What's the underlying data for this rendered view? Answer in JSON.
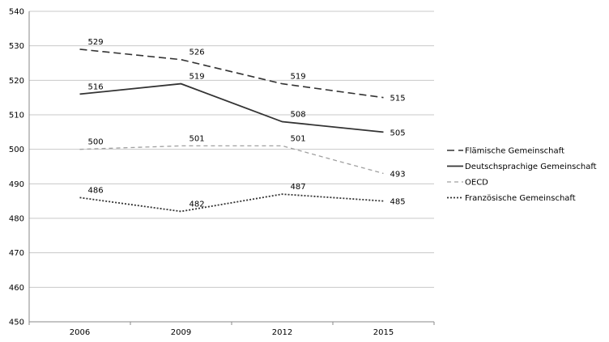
{
  "chart_data": {
    "type": "line",
    "categories": [
      "2006",
      "2009",
      "2012",
      "2015"
    ],
    "ylim": [
      450,
      540
    ],
    "yticks": [
      450,
      460,
      470,
      480,
      490,
      500,
      510,
      520,
      530,
      540
    ],
    "grid": "horizontal",
    "legend_position": "right",
    "series": [
      {
        "name": "Flämische Gemeinschaft",
        "values": [
          529,
          526,
          519,
          515
        ],
        "style": "long-dash",
        "color": "#333333"
      },
      {
        "name": "Deutschsprachige Gemeinschaft",
        "values": [
          516,
          519,
          508,
          505
        ],
        "style": "solid",
        "color": "#333333"
      },
      {
        "name": "OECD",
        "values": [
          500,
          501,
          501,
          493
        ],
        "style": "dash",
        "color": "#a0a0a0"
      },
      {
        "name": "Französische Gemeinschaft",
        "values": [
          486,
          482,
          487,
          485
        ],
        "style": "dot",
        "color": "#333333"
      }
    ]
  }
}
